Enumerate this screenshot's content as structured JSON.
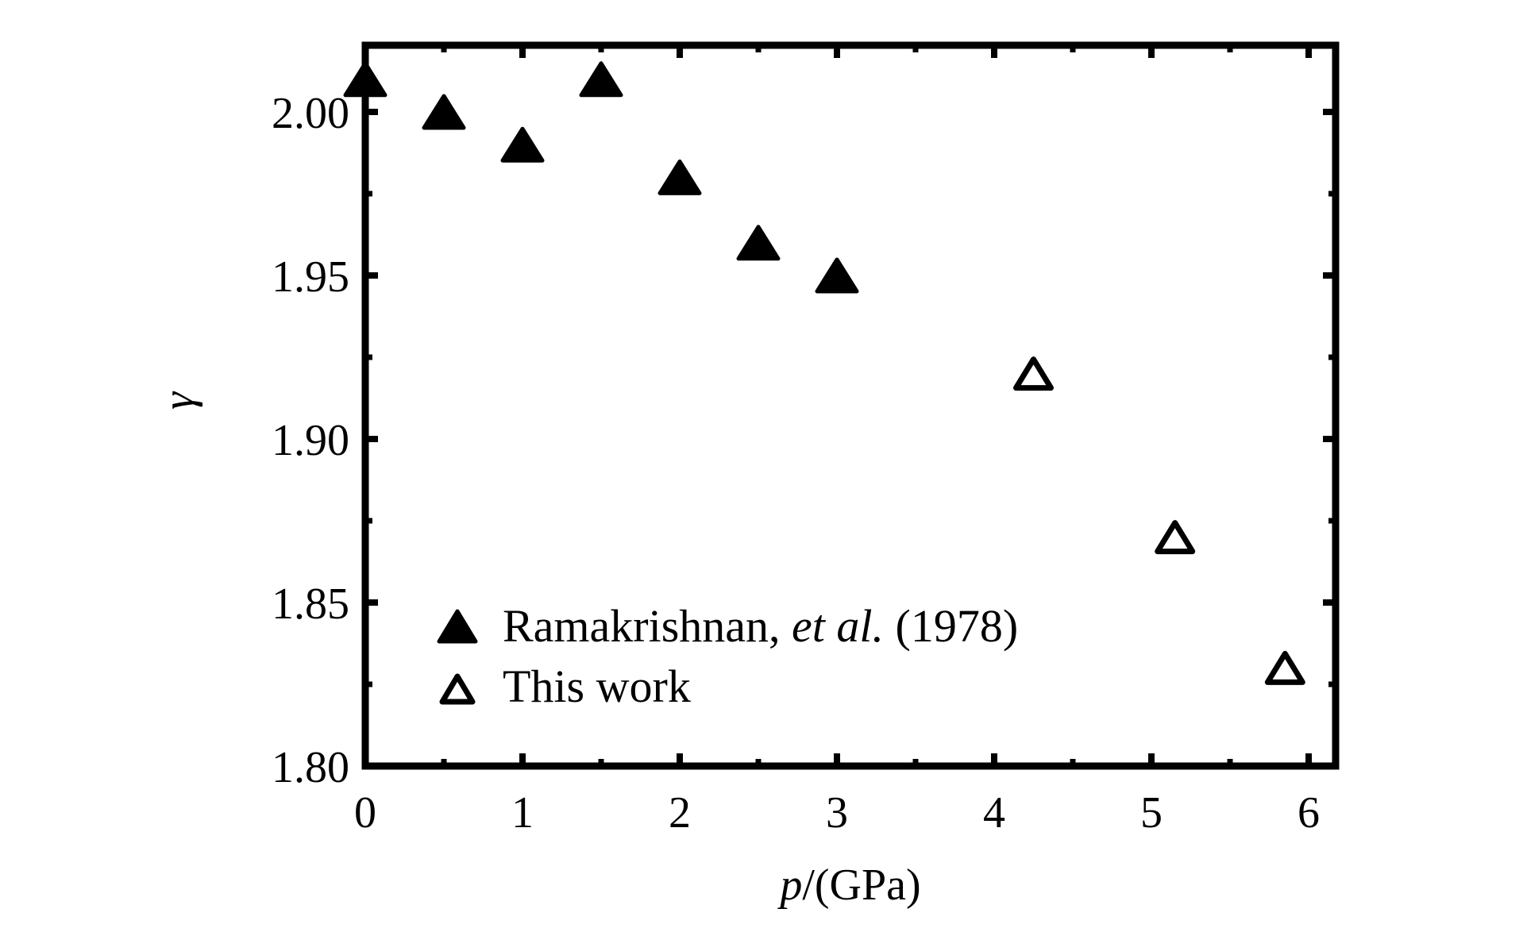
{
  "chart_data": {
    "type": "scatter",
    "xlabel_var": "p",
    "xlabel_unit": "/(GPa)",
    "ylabel": "γ",
    "xlim": [
      0,
      6.2
    ],
    "ylim": [
      1.8,
      2.02
    ],
    "xticks": [
      0,
      1,
      2,
      3,
      4,
      5,
      6
    ],
    "xtick_labels": [
      "0",
      "1",
      "2",
      "3",
      "4",
      "5",
      "6"
    ],
    "xminor": [
      0.5,
      1.5,
      2.5,
      3.5,
      4.5,
      5.5
    ],
    "yticks": [
      1.8,
      1.85,
      1.9,
      1.95,
      2.0
    ],
    "ytick_labels": [
      "1.80",
      "1.85",
      "1.90",
      "1.95",
      "2.00"
    ],
    "yminor": [
      1.825,
      1.875,
      1.925,
      1.975
    ],
    "grid": false,
    "legend_position": "lower-left",
    "series": [
      {
        "name_main": "Ramakrishnan, ",
        "name_italic": "et al.",
        "name_year": " (1978)",
        "marker": "filled-triangle",
        "color": "#000000",
        "x": [
          0,
          0.5,
          1.0,
          1.5,
          2.0,
          2.5,
          3.0
        ],
        "y": [
          2.01,
          2.0,
          1.99,
          2.01,
          1.98,
          1.96,
          1.95
        ]
      },
      {
        "name": "This work",
        "marker": "open-triangle",
        "color": "#000000",
        "x": [
          4.25,
          5.15,
          5.85
        ],
        "y": [
          1.92,
          1.87,
          1.83
        ]
      }
    ]
  }
}
